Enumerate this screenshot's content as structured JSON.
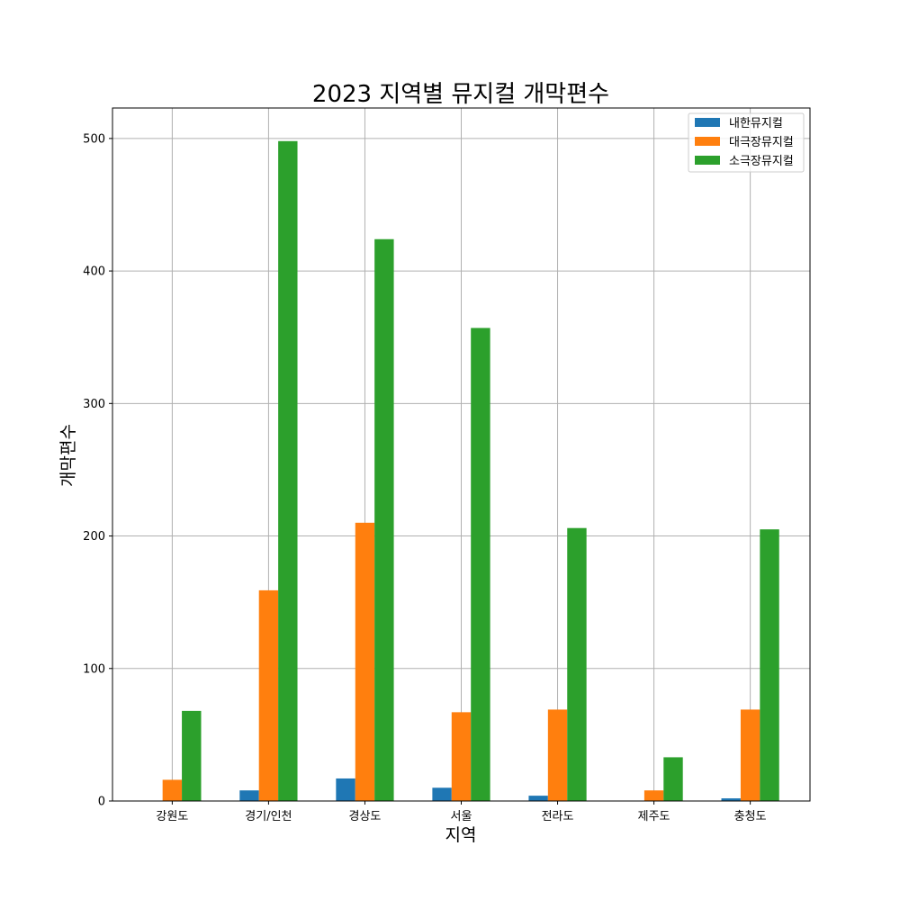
{
  "chart_data": {
    "type": "bar",
    "title": "2023 지역별 뮤지컬 개막편수",
    "xlabel": "지역",
    "ylabel": "개막편수",
    "categories": [
      "강원도",
      "경기/인천",
      "경상도",
      "서울",
      "전라도",
      "제주도",
      "충청도"
    ],
    "series": [
      {
        "name": "내한뮤지컬",
        "color": "#1f77b4",
        "values": [
          0,
          8,
          17,
          10,
          4,
          0,
          2
        ]
      },
      {
        "name": "대극장뮤지컬",
        "color": "#ff7f0e",
        "values": [
          16,
          159,
          210,
          67,
          69,
          8,
          69
        ]
      },
      {
        "name": "소극장뮤지컬",
        "color": "#2ca02c",
        "values": [
          68,
          498,
          424,
          357,
          206,
          33,
          205
        ]
      }
    ],
    "ylim": [
      0,
      523
    ],
    "yticks": [
      0,
      100,
      200,
      300,
      400,
      500
    ],
    "grid": true,
    "legend_position": "top-right"
  }
}
